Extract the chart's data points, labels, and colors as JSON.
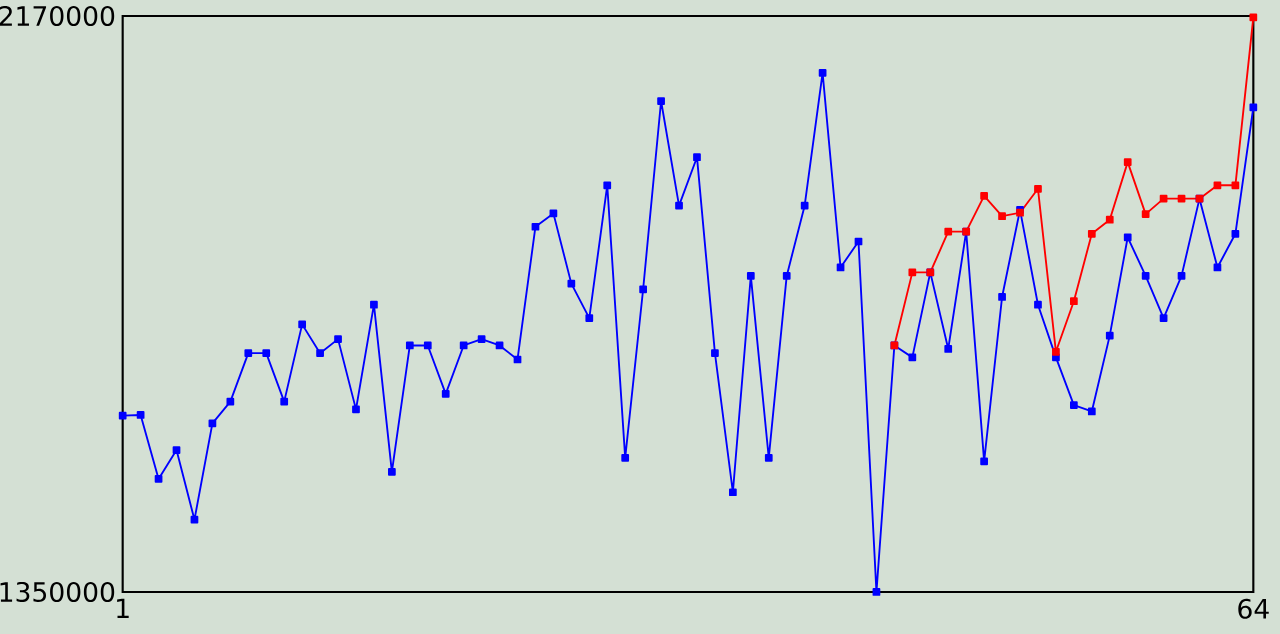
{
  "chart_data": {
    "type": "line",
    "xlim": [
      1,
      64
    ],
    "xticks": [
      1,
      64
    ],
    "ylim": [
      1350000,
      2170000
    ],
    "yticks": [
      1350000,
      2170000
    ],
    "marker": "square",
    "series": [
      {
        "color": "#0000ff",
        "x": [
          1,
          2,
          3,
          4,
          5,
          6,
          7,
          8,
          9,
          10,
          11,
          12,
          13,
          14,
          15,
          16,
          17,
          18,
          19,
          20,
          21,
          22,
          23,
          24,
          25,
          26,
          27,
          28,
          29,
          30,
          31,
          32,
          33,
          34,
          35,
          36,
          37,
          38,
          39,
          40,
          41,
          42,
          43,
          44,
          45,
          46,
          47,
          48,
          49,
          50,
          51,
          52,
          53,
          54,
          55,
          56,
          57,
          58,
          59,
          60,
          61,
          62,
          63,
          64
        ],
        "values": [
          1601000,
          1602000,
          1511000,
          1552000,
          1453000,
          1590000,
          1621000,
          1690000,
          1690000,
          1621000,
          1731000,
          1690000,
          1710000,
          1610000,
          1759000,
          1521000,
          1701000,
          1701000,
          1632000,
          1701000,
          1710000,
          1701000,
          1681000,
          1870000,
          1889000,
          1789000,
          1740000,
          1929000,
          1541000,
          1781000,
          2049000,
          1900000,
          1969000,
          1690000,
          1492000,
          1800000,
          1541000,
          1800000,
          1900000,
          2089000,
          1812000,
          1849000,
          1350000,
          1701000,
          1684000,
          1805000,
          1696000,
          1863000,
          1536000,
          1770000,
          1894000,
          1759000,
          1684000,
          1616000,
          1607000,
          1715000,
          1855000,
          1800000,
          1740000,
          1800000,
          1910000,
          1812000,
          1860000,
          2040000
        ]
      },
      {
        "color": "#ff0000",
        "x": [
          44,
          45,
          46,
          47,
          48,
          49,
          50,
          51,
          52,
          53,
          54,
          55,
          56,
          57,
          58,
          59,
          60,
          61,
          62,
          63,
          64
        ],
        "values": [
          1701000,
          1805000,
          1805000,
          1863000,
          1863000,
          1914000,
          1885000,
          1890000,
          1924000,
          1692000,
          1764000,
          1860000,
          1880000,
          1962000,
          1888000,
          1910000,
          1910000,
          1910000,
          1929000,
          1929000,
          2168000
        ]
      }
    ]
  }
}
